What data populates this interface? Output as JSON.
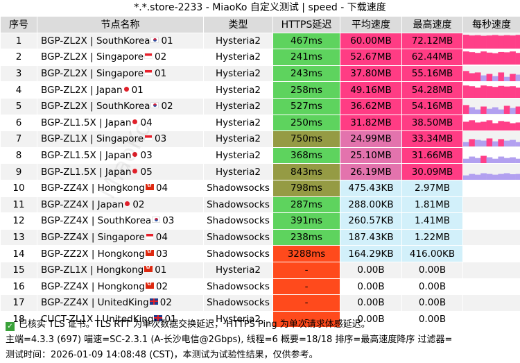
{
  "title": "*.*.store-2233 - MiaoKo 自定义测试 | speed - 下载速度",
  "watermark": "MiaoKo",
  "headers": [
    "序号",
    "节点名称",
    "类型",
    "HTTPS延迟",
    "平均速度",
    "最高速度",
    "每秒速度"
  ],
  "colors": {
    "green": "#5ed35e",
    "olive": "#959b44",
    "orange_red": "#ff4a1c",
    "pink_hot": "#ff3c84",
    "pink_light": "#e373ad",
    "light_blue": "#d2f0fa",
    "spark_pink": "#ff3f88",
    "spark_purple": "#b2a0f0"
  },
  "rows": [
    {
      "idx": "1",
      "name": "BGP-ZL2X | SouthKorea",
      "flag": "kr",
      "num": "01",
      "type": "Hysteria2",
      "latency": "467ms",
      "lat_color": "green",
      "avg": "60.00MB",
      "avg_color": "pink_hot",
      "max": "72.12MB",
      "max_color": "pink_hot",
      "spark": [
        0.95,
        0.9,
        0.92,
        0.88,
        0.9,
        0.93,
        0.89,
        0.92,
        0.9,
        0.94
      ]
    },
    {
      "idx": "2",
      "name": "BGP-ZL2X | Singapore",
      "flag": "sg",
      "num": "02",
      "type": "Hysteria2",
      "latency": "241ms",
      "lat_color": "green",
      "avg": "52.67MB",
      "avg_color": "pink_hot",
      "max": "62.44MB",
      "max_color": "pink_hot",
      "spark": [
        0.9,
        0.85,
        0.8,
        0.9,
        0.82,
        0.78,
        0.86,
        0.84,
        0.9,
        0.8
      ]
    },
    {
      "idx": "3",
      "name": "BGP-ZL2X | Singapore",
      "flag": "sg",
      "num": "01",
      "type": "Hysteria2",
      "latency": "243ms",
      "lat_color": "green",
      "avg": "37.80MB",
      "avg_color": "pink_hot",
      "max": "55.16MB",
      "max_color": "pink_hot",
      "spark": [
        0.7,
        0.55,
        0.6,
        0.4,
        0.5,
        0.35,
        0.6,
        0.3,
        0.5,
        0.45
      ]
    },
    {
      "idx": "4",
      "name": "BGP-ZL2X | Japan",
      "flag": "jp",
      "num": "01",
      "type": "Hysteria2",
      "latency": "258ms",
      "lat_color": "green",
      "avg": "49.16MB",
      "avg_color": "pink_hot",
      "max": "54.28MB",
      "max_color": "pink_hot",
      "spark": [
        0.85,
        0.8,
        0.7,
        0.85,
        0.8,
        0.75,
        0.82,
        0.78,
        0.8,
        0.7
      ]
    },
    {
      "idx": "5",
      "name": "BGP-ZL2X | SouthKorea",
      "flag": "kr",
      "num": "02",
      "type": "Hysteria2",
      "latency": "527ms",
      "lat_color": "green",
      "avg": "36.62MB",
      "avg_color": "pink_hot",
      "max": "54.16MB",
      "max_color": "pink_hot",
      "spark": [
        0.6,
        0.45,
        0.3,
        0.5,
        0.35,
        0.45,
        0.3,
        0.55,
        0.4,
        0.5
      ]
    },
    {
      "idx": "6",
      "name": "BGP-ZL1.5X | Japan",
      "flag": "jp",
      "num": "04",
      "type": "Hysteria2",
      "latency": "250ms",
      "lat_color": "green",
      "avg": "31.82MB",
      "avg_color": "pink_hot",
      "max": "38.50MB",
      "max_color": "pink_hot",
      "spark": [
        0.6,
        0.7,
        0.55,
        0.6,
        0.7,
        0.5,
        0.65,
        0.6,
        0.5,
        0.55
      ]
    },
    {
      "idx": "7",
      "name": "BGP-ZL1X | Singapore",
      "flag": "sg",
      "num": "03",
      "type": "Hysteria2",
      "latency": "750ms",
      "lat_color": "olive",
      "avg": "24.99MB",
      "avg_color": "pink_light",
      "max": "33.34MB",
      "max_color": "pink_hot",
      "spark": [
        0.3,
        0.5,
        0.45,
        0.4,
        0.55,
        0.35,
        0.5,
        0.4,
        0.45,
        0.3
      ]
    },
    {
      "idx": "8",
      "name": "BGP-ZL1.5X | Japan",
      "flag": "jp",
      "num": "03",
      "type": "Hysteria2",
      "latency": "368ms",
      "lat_color": "green",
      "avg": "25.10MB",
      "avg_color": "pink_light",
      "max": "31.66MB",
      "max_color": "pink_hot",
      "spark": [
        0.3,
        0.45,
        0.35,
        0.5,
        0.4,
        0.3,
        0.45,
        0.35,
        0.4,
        0.3
      ]
    },
    {
      "idx": "9",
      "name": "BGP-ZL1.5X | Japan",
      "flag": "jp",
      "num": "05",
      "type": "Hysteria2",
      "latency": "843ms",
      "lat_color": "olive",
      "avg": "26.19MB",
      "avg_color": "pink_light",
      "max": "30.09MB",
      "max_color": "pink_hot",
      "spark": [
        0.3,
        0.4,
        0.35,
        0.45,
        0.4,
        0.35,
        0.4,
        0.45,
        0.38,
        0.4
      ]
    },
    {
      "idx": "10",
      "name": "BGP-ZZ4X | Hongkong",
      "flag": "hk",
      "num": "04",
      "type": "Shadowsocks",
      "latency": "798ms",
      "lat_color": "olive",
      "avg": "475.43KB",
      "avg_color": "light_blue",
      "max": "2.97MB",
      "max_color": "light_blue",
      "spark": []
    },
    {
      "idx": "11",
      "name": "BGP-ZZ4X | Japan",
      "flag": "jp",
      "num": "02",
      "type": "Shadowsocks",
      "latency": "287ms",
      "lat_color": "green",
      "avg": "288.00KB",
      "avg_color": "light_blue",
      "max": "1.81MB",
      "max_color": "light_blue",
      "spark": []
    },
    {
      "idx": "12",
      "name": "BGP-ZZ4X | SouthKorea",
      "flag": "kr",
      "num": "03",
      "type": "Shadowsocks",
      "latency": "391ms",
      "lat_color": "green",
      "avg": "260.57KB",
      "avg_color": "light_blue",
      "max": "1.41MB",
      "max_color": "light_blue",
      "spark": []
    },
    {
      "idx": "13",
      "name": "BGP-ZZ4X | Singapore",
      "flag": "sg",
      "num": "04",
      "type": "Shadowsocks",
      "latency": "238ms",
      "lat_color": "green",
      "avg": "187.43KB",
      "avg_color": "light_blue",
      "max": "1.22MB",
      "max_color": "light_blue",
      "spark": []
    },
    {
      "idx": "14",
      "name": "BGP-ZZ2X | Hongkong",
      "flag": "hk",
      "num": "03",
      "type": "Shadowsocks",
      "latency": "3288ms",
      "lat_color": "orange_red",
      "avg": "164.29KB",
      "avg_color": "light_blue",
      "max": "416.00KB",
      "max_color": "light_blue",
      "spark": []
    },
    {
      "idx": "15",
      "name": "BGP-ZL1X | Hongkong",
      "flag": "hk",
      "num": "01",
      "type": "Hysteria2",
      "latency": "-",
      "lat_color": "orange_red",
      "avg": "0.00B",
      "avg_color": "",
      "max": "0.00B",
      "max_color": "",
      "spark": []
    },
    {
      "idx": "16",
      "name": "BGP-ZZ4X | Hongkong",
      "flag": "hk",
      "num": "02",
      "type": "Shadowsocks",
      "latency": "-",
      "lat_color": "orange_red",
      "avg": "0.00B",
      "avg_color": "",
      "max": "0.00B",
      "max_color": "",
      "spark": []
    },
    {
      "idx": "17",
      "name": "BGP-ZZ4X | UnitedKing",
      "flag": "uk",
      "num": "02",
      "type": "Shadowsocks",
      "latency": "-",
      "lat_color": "orange_red",
      "avg": "0.00B",
      "avg_color": "",
      "max": "0.00B",
      "max_color": "",
      "spark": []
    },
    {
      "idx": "18",
      "name": "CUCT-ZL1X | UnitedKing",
      "flag": "uk",
      "num": "01",
      "type": "Hysteria2",
      "latency": "-",
      "lat_color": "orange_red",
      "avg": "0.00B",
      "avg_color": "",
      "max": "0.00B",
      "max_color": "",
      "spark": []
    }
  ],
  "footer": {
    "line1": "已核实 TLS 证书。TLS RTT 为单次数据交换延迟， HTTPS Ping 为单次请求体感延迟。",
    "line2": "主端=4.3.3 (697) 喵速=SC-2.3.1 (A-长沙电信@2Gbps), 线程=6 概要=18/18 排序=最高速度降序 过滤器=",
    "line3": "测试时间：2026-01-09 14:08:48 (CST)，本测试为试验性结果，仅供参考。"
  }
}
